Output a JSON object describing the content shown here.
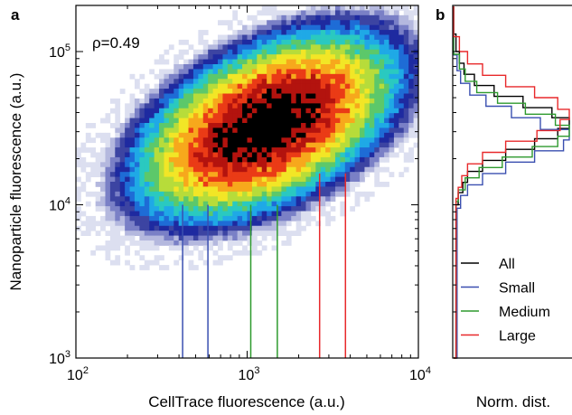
{
  "chart_data": [
    {
      "type": "heatmap",
      "panel_label": "a",
      "title": "",
      "xlabel": "CellTrace fluorescence (a.u.)",
      "ylabel": "Nanoparticle fluorescence (a.u.)",
      "xscale": "log",
      "yscale": "log",
      "xlim": [
        100,
        10000
      ],
      "ylim": [
        1000,
        200000
      ],
      "x_ticks": [
        {
          "value": 100,
          "base": "10",
          "exp": "2"
        },
        {
          "value": 1000,
          "base": "10",
          "exp": "3"
        },
        {
          "value": 10000,
          "base": "10",
          "exp": "4"
        }
      ],
      "y_ticks": [
        {
          "value": 1000,
          "base": "10",
          "exp": "3"
        },
        {
          "value": 10000,
          "base": "10",
          "exp": "4"
        },
        {
          "value": 100000,
          "base": "10",
          "exp": "5"
        }
      ],
      "annotation": "ρ=0.49",
      "density_peak": {
        "x": 1300,
        "y": 33000
      },
      "correlation": 0.49,
      "gates": [
        {
          "group": "Small",
          "color": "#3a4fb0",
          "x": [
            420,
            590
          ]
        },
        {
          "group": "Medium",
          "color": "#2e9a2e",
          "x": [
            1050,
            1500
          ]
        },
        {
          "group": "Large",
          "color": "#e8292b",
          "x": [
            2650,
            3750
          ]
        }
      ],
      "gate_top_y": 10000,
      "gate_top_y_large": 16000,
      "colormap": [
        "#dcdff0",
        "#b4b8de",
        "#7a80c6",
        "#3c44a2",
        "#1e2aa0",
        "#1e6cd6",
        "#1fa9e6",
        "#2ac9c0",
        "#5cc86a",
        "#b7dc3a",
        "#f2e626",
        "#f7a81c",
        "#ea3b16",
        "#b3130e",
        "#000000"
      ]
    },
    {
      "type": "line",
      "panel_label": "b",
      "title": "",
      "xlabel": "Norm. dist.",
      "ylabel": "",
      "shares_y_axis_with": "a",
      "legend_position": "bottom",
      "series": [
        {
          "name": "All",
          "color": "#000000",
          "x": [
            0.02,
            0.04,
            0.08,
            0.12,
            0.25,
            0.45,
            0.7,
            0.9,
            1.0,
            0.85,
            0.6,
            0.35,
            0.18,
            0.09,
            0.05,
            0.02
          ],
          "y": [
            10000,
            12000,
            14000,
            16500,
            19500,
            23000,
            27000,
            31500,
            37000,
            43000,
            51000,
            60000,
            71000,
            84000,
            100000,
            130000
          ]
        },
        {
          "name": "Small",
          "color": "#3a4fb0",
          "x": [
            0.03,
            0.06,
            0.12,
            0.25,
            0.45,
            0.7,
            0.95,
            1.0,
            0.75,
            0.5,
            0.28,
            0.14,
            0.06,
            0.03
          ],
          "y": [
            9500,
            11500,
            13500,
            16000,
            19000,
            22500,
            26500,
            31000,
            37000,
            44000,
            52000,
            62000,
            75000,
            95000
          ]
        },
        {
          "name": "Medium",
          "color": "#2e9a2e",
          "x": [
            0.02,
            0.04,
            0.1,
            0.22,
            0.42,
            0.68,
            0.9,
            1.0,
            0.88,
            0.62,
            0.38,
            0.2,
            0.1,
            0.05
          ],
          "y": [
            10500,
            12500,
            15000,
            17500,
            20500,
            24000,
            28000,
            33000,
            39000,
            46000,
            54000,
            64000,
            77000,
            96000
          ]
        },
        {
          "name": "Large",
          "color": "#e8292b",
          "x": [
            0.02,
            0.04,
            0.07,
            0.12,
            0.25,
            0.45,
            0.72,
            0.92,
            1.0,
            0.9,
            0.7,
            0.45,
            0.25,
            0.12,
            0.05
          ],
          "y": [
            11000,
            13000,
            15500,
            18500,
            22000,
            26000,
            30500,
            36000,
            42000,
            50000,
            59000,
            70000,
            83000,
            100000,
            125000
          ]
        }
      ]
    }
  ]
}
